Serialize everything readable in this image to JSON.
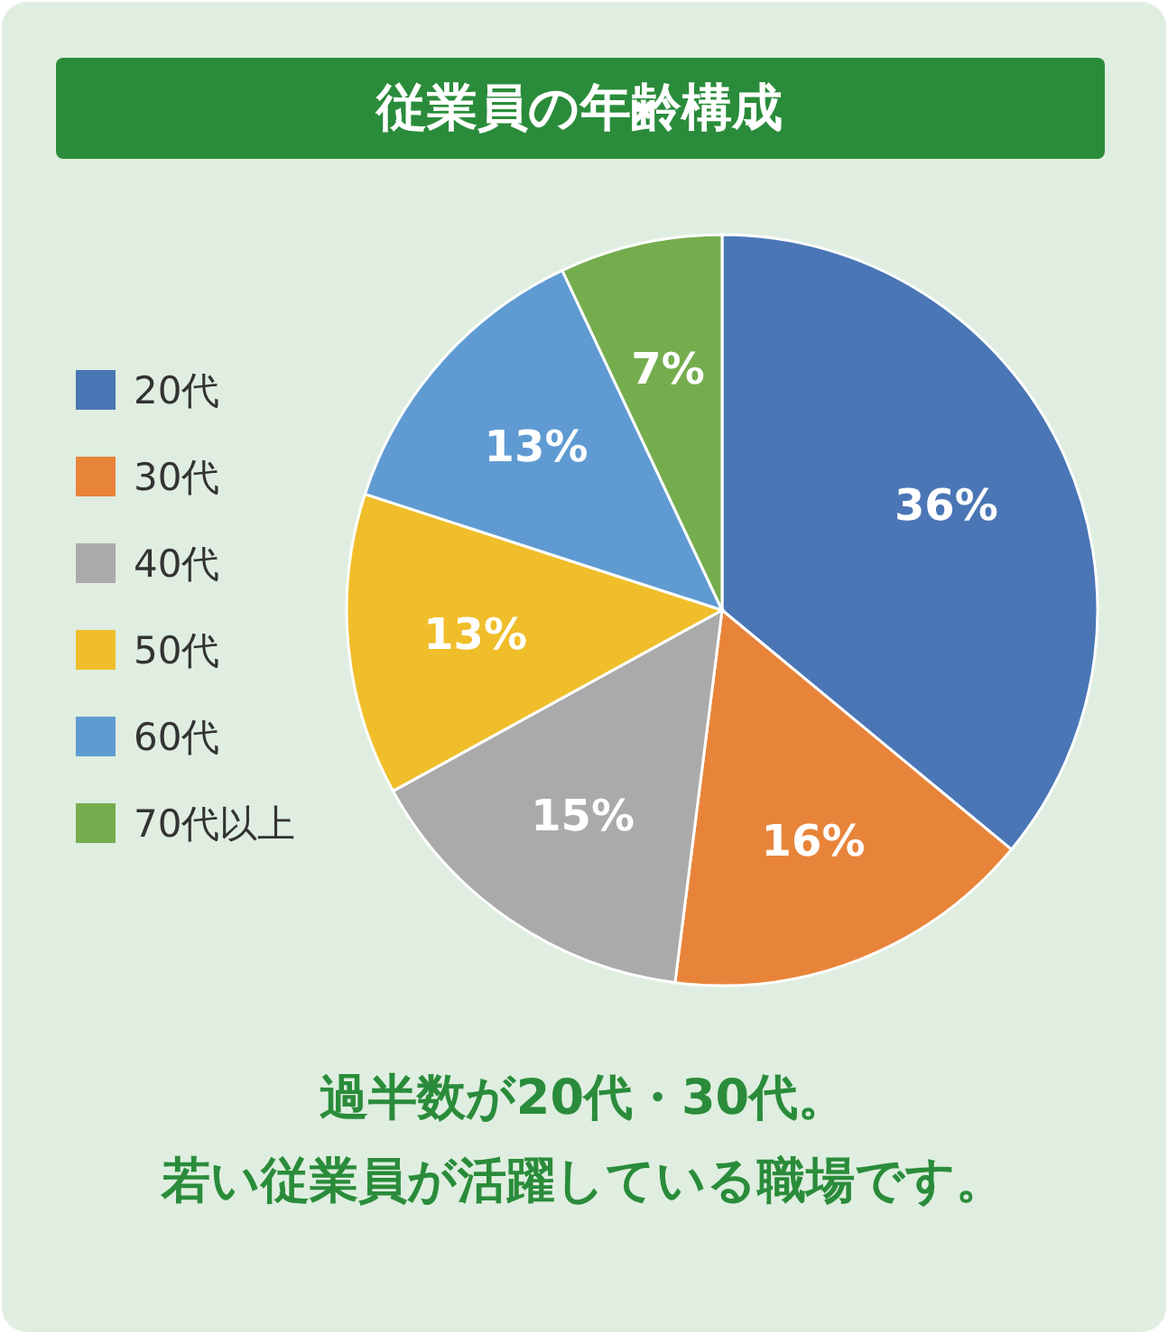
{
  "chart_data": {
    "type": "pie",
    "title": "従業員の年齢構成",
    "categories": [
      "20代",
      "30代",
      "40代",
      "50代",
      "60代",
      "70代以上"
    ],
    "values": [
      36,
      16,
      15,
      13,
      13,
      7
    ],
    "colors": [
      "#4a76b6",
      "#e8843a",
      "#aaaaaa",
      "#f0be2a",
      "#5f9bd2",
      "#75ad4e"
    ],
    "value_labels": [
      "36%",
      "16%",
      "15%",
      "13%",
      "13%",
      "7%"
    ],
    "legend": "left",
    "annotations": [
      "過半数が20代・30代。",
      "若い従業員が活躍している職場です。"
    ]
  }
}
